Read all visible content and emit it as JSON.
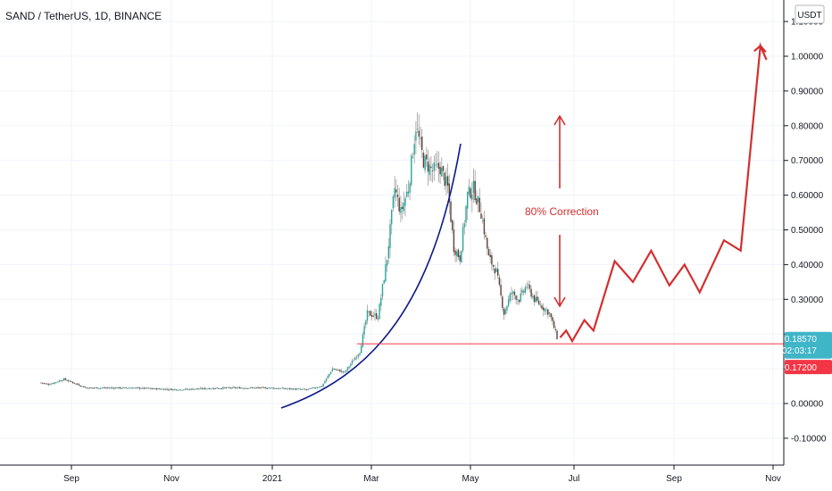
{
  "chart_data": {
    "type": "candlestick",
    "title": "SAND / TetherUS, 1D, BINANCE",
    "currency_label": "USDT",
    "x_tick_labels": [
      "Sep",
      "Nov",
      "2021",
      "Mar",
      "May",
      "Jul",
      "Sep",
      "Nov"
    ],
    "y_ticks": [
      -0.1,
      0.0,
      0.1,
      0.2,
      0.3,
      0.4,
      0.5,
      0.6,
      0.7,
      0.8,
      0.9,
      1.0,
      1.1
    ],
    "y_tick_labels": [
      "-0.10000",
      "0.00000",
      "",
      "",
      "0.30000",
      "0.40000",
      "0.50000",
      "0.60000",
      "0.70000",
      "0.80000",
      "0.90000",
      "1.00000",
      "1.10000"
    ],
    "ylim": [
      -0.175,
      1.225
    ],
    "grid": true,
    "up_color": "#26a69a",
    "down_color": "#5d4037",
    "price_series": [
      {
        "d": 0,
        "c": 0.06
      },
      {
        "d": 5,
        "c": 0.055
      },
      {
        "d": 15,
        "c": 0.07
      },
      {
        "d": 30,
        "c": 0.045
      },
      {
        "d": 60,
        "c": 0.045
      },
      {
        "d": 90,
        "c": 0.04
      },
      {
        "d": 120,
        "c": 0.045
      },
      {
        "d": 150,
        "c": 0.045
      },
      {
        "d": 175,
        "c": 0.04
      },
      {
        "d": 185,
        "c": 0.05
      },
      {
        "d": 192,
        "c": 0.1
      },
      {
        "d": 200,
        "c": 0.09
      },
      {
        "d": 210,
        "c": 0.15
      },
      {
        "d": 215,
        "c": 0.26
      },
      {
        "d": 222,
        "c": 0.25
      },
      {
        "d": 228,
        "c": 0.42
      },
      {
        "d": 233,
        "c": 0.62
      },
      {
        "d": 237,
        "c": 0.55
      },
      {
        "d": 242,
        "c": 0.62
      },
      {
        "d": 247,
        "c": 0.8
      },
      {
        "d": 252,
        "c": 0.7
      },
      {
        "d": 258,
        "c": 0.67
      },
      {
        "d": 263,
        "c": 0.68
      },
      {
        "d": 268,
        "c": 0.62
      },
      {
        "d": 272,
        "c": 0.45
      },
      {
        "d": 276,
        "c": 0.42
      },
      {
        "d": 281,
        "c": 0.6
      },
      {
        "d": 285,
        "c": 0.62
      },
      {
        "d": 290,
        "c": 0.55
      },
      {
        "d": 295,
        "c": 0.42
      },
      {
        "d": 300,
        "c": 0.38
      },
      {
        "d": 305,
        "c": 0.26
      },
      {
        "d": 310,
        "c": 0.32
      },
      {
        "d": 315,
        "c": 0.3
      },
      {
        "d": 320,
        "c": 0.34
      },
      {
        "d": 325,
        "c": 0.3
      },
      {
        "d": 330,
        "c": 0.28
      },
      {
        "d": 335,
        "c": 0.26
      },
      {
        "d": 340,
        "c": 0.19
      }
    ],
    "support_level": 0.172,
    "projection": [
      {
        "d": 342,
        "v": 0.19
      },
      {
        "d": 346,
        "v": 0.21
      },
      {
        "d": 350,
        "v": 0.18
      },
      {
        "d": 358,
        "v": 0.24
      },
      {
        "d": 364,
        "v": 0.21
      },
      {
        "d": 378,
        "v": 0.41
      },
      {
        "d": 390,
        "v": 0.35
      },
      {
        "d": 402,
        "v": 0.44
      },
      {
        "d": 414,
        "v": 0.34
      },
      {
        "d": 424,
        "v": 0.4
      },
      {
        "d": 434,
        "v": 0.32
      },
      {
        "d": 450,
        "v": 0.47
      },
      {
        "d": 461,
        "v": 0.44
      },
      {
        "d": 474,
        "v": 1.03
      },
      {
        "d": 478,
        "v": 0.99
      }
    ],
    "annotation": {
      "text": "80% Correction",
      "color": "#d32f2f"
    },
    "last_price": {
      "value": "0.18570",
      "countdown": "02:03:17",
      "color": "#3fb5c8"
    },
    "support_badge": {
      "value": "0.17200",
      "color": "#f23645"
    },
    "curve_color": "#0d1b8c"
  }
}
